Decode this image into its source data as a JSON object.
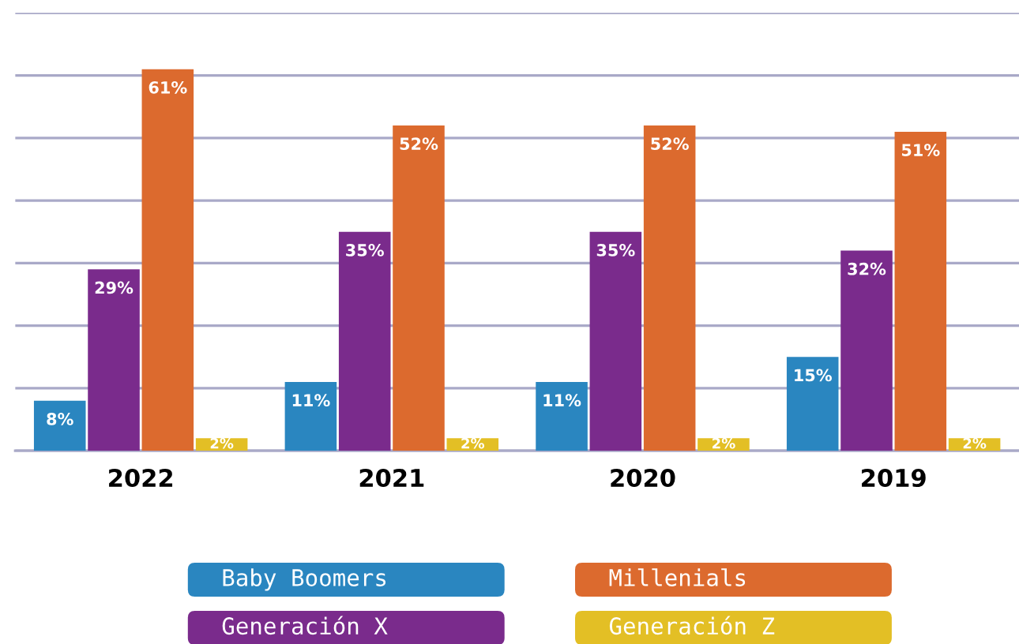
{
  "chart_data": {
    "type": "bar",
    "categories": [
      "2022",
      "2021",
      "2020",
      "2019"
    ],
    "series": [
      {
        "name": "Baby Boomers",
        "color": "#2a86c0",
        "values": [
          8,
          11,
          11,
          15
        ],
        "value_labels": [
          "8%",
          "11%",
          "11%",
          "15%"
        ]
      },
      {
        "name": "Generación X",
        "color": "#7a2b8c",
        "values": [
          29,
          35,
          35,
          32
        ],
        "value_labels": [
          "29%",
          "35%",
          "35%",
          "32%"
        ]
      },
      {
        "name": "Millenials",
        "color": "#dc6a2e",
        "values": [
          61,
          52,
          52,
          51
        ],
        "value_labels": [
          "61%",
          "52%",
          "52%",
          "51%"
        ]
      },
      {
        "name": "Generación Z",
        "color": "#e3bf25",
        "values": [
          2,
          2,
          2,
          2
        ],
        "value_labels": [
          "2%",
          "2%",
          "2%",
          "2%"
        ]
      }
    ],
    "ylim": [
      0,
      70
    ],
    "yticks": [
      {
        "value": 0,
        "label": null
      },
      {
        "value": 10,
        "label": null
      },
      {
        "value": 20,
        "label": null
      },
      {
        "value": 30,
        "label": null
      },
      {
        "value": 40,
        "label": null
      },
      {
        "value": 50,
        "label": null
      },
      {
        "value": 60,
        "label": null
      },
      {
        "value": 70,
        "label": null
      }
    ],
    "grid": "y",
    "legend": "bottom",
    "tick_labels": "x"
  }
}
